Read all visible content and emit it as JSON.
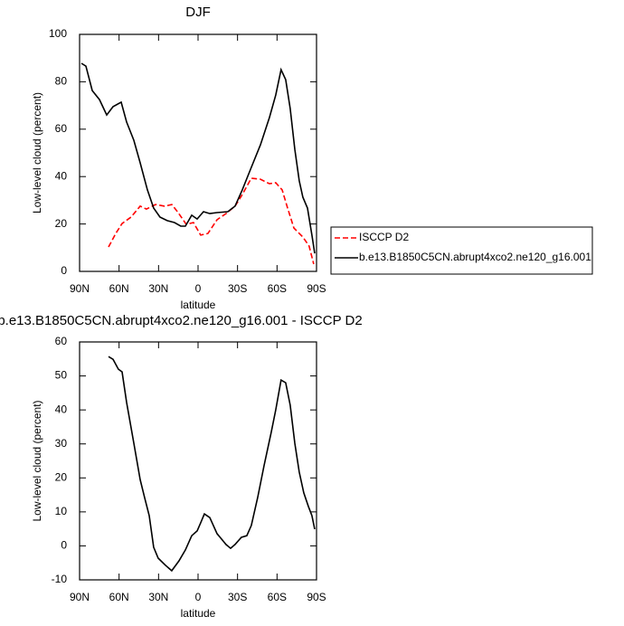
{
  "chart_data": [
    {
      "type": "line",
      "title": "DJF",
      "x_label": "latitude",
      "y_label": "Low-level cloud (percent)",
      "xlim": [
        90,
        -90
      ],
      "ylim": [
        0,
        100
      ],
      "xticks": [
        {
          "value": 90,
          "label": "90N"
        },
        {
          "value": 60,
          "label": "60N"
        },
        {
          "value": 30,
          "label": "30N"
        },
        0,
        {
          "value": -30,
          "label": "30S"
        },
        {
          "value": -60,
          "label": "60S"
        },
        {
          "value": -90,
          "label": "90S"
        }
      ],
      "yticks": [
        0,
        20,
        40,
        60,
        80,
        100
      ],
      "legend": "right",
      "series": [
        {
          "name": "ISCCP D2",
          "color": "#ff0000",
          "dash": true,
          "x": [
            68,
            62.5,
            57.7,
            50.9,
            44,
            39.2,
            32.3,
            25.4,
            19.9,
            15.1,
            8.9,
            3.5,
            -2,
            -7.5,
            -14.4,
            -21.2,
            -28.1,
            -33.6,
            -40.5,
            -47.4,
            -54.2,
            -59,
            -63.9,
            -68,
            -72.8,
            -79.6,
            -84.4,
            -87.9
          ],
          "values": [
            10.3,
            16,
            20.2,
            22.9,
            27.5,
            26.3,
            28.2,
            27.5,
            28.2,
            24.8,
            19.8,
            20.6,
            15.3,
            16,
            21.8,
            24.4,
            27.5,
            32.4,
            39.3,
            38.9,
            37,
            37.4,
            34.4,
            26.7,
            18.3,
            14.5,
            10.7,
            3.1
          ]
        },
        {
          "name": "b.e13.B1850C5CN.abrupt4xco2.ne120_g16.001",
          "color": "#000000",
          "dash": false,
          "x": [
            88.6,
            85.2,
            80.4,
            74.9,
            69.4,
            64.6,
            58.4,
            54.3,
            48.8,
            44,
            38.5,
            33.7,
            28.9,
            23.4,
            17.9,
            13.1,
            9.6,
            4.8,
            0.7,
            -4.1,
            -8.9,
            -14.4,
            -22.6,
            -28.1,
            -33.6,
            -40.5,
            -47.4,
            -54.2,
            -59,
            -63.1,
            -66.6,
            -70,
            -73.5,
            -76.9,
            -79.6,
            -83.1,
            -86.5,
            -88.6
          ],
          "values": [
            87.8,
            86.6,
            76.3,
            72.5,
            66,
            69.5,
            71.4,
            63,
            55.3,
            45.8,
            34.4,
            26.7,
            22.9,
            21.4,
            20.6,
            19.1,
            19.1,
            23.7,
            22.1,
            25.2,
            24.4,
            24.8,
            25.2,
            27.5,
            34.4,
            43.9,
            53.4,
            64.9,
            74.4,
            85.1,
            80.9,
            68.7,
            51.5,
            38.2,
            31.3,
            26.7,
            15.3,
            7.6
          ]
        }
      ]
    },
    {
      "type": "line",
      "title": "b.e13.B1850C5CN.abrupt4xco2.ne120_g16.001 - ISCCP D2",
      "x_label": "latitude",
      "y_label": "Low-level cloud (percent)",
      "xlim": [
        90,
        -90
      ],
      "ylim": [
        -10,
        60
      ],
      "xticks": [
        {
          "value": 90,
          "label": "90N"
        },
        {
          "value": 60,
          "label": "60N"
        },
        {
          "value": 30,
          "label": "30N"
        },
        0,
        {
          "value": -30,
          "label": "30S"
        },
        {
          "value": -60,
          "label": "60S"
        },
        {
          "value": -90,
          "label": "90S"
        }
      ],
      "yticks": [
        -10,
        0,
        10,
        20,
        30,
        40,
        50,
        60
      ],
      "color": "#000000",
      "x": [
        68,
        64.6,
        60.5,
        57.7,
        54.3,
        48.8,
        44,
        40.6,
        37.1,
        33.7,
        30.3,
        24.8,
        20,
        14.5,
        9.6,
        4.8,
        0.7,
        -2,
        -4.8,
        -8.9,
        -14.4,
        -18.5,
        -21.2,
        -24.7,
        -28.1,
        -32.9,
        -37,
        -40.5,
        -45.3,
        -50.1,
        -55.6,
        -59,
        -63.1,
        -66.6,
        -70,
        -73.5,
        -76.9,
        -80.3,
        -83.8,
        -86.5,
        -88.6
      ],
      "values": [
        55.7,
        54.9,
        52,
        51.2,
        42.2,
        30.2,
        19.5,
        14.2,
        8.9,
        -0.4,
        -3.6,
        -5.7,
        -7.3,
        -4.4,
        -1.2,
        3,
        4.4,
        6.8,
        9.4,
        8.3,
        3.6,
        1.7,
        0.4,
        -0.7,
        0.4,
        2.5,
        3,
        6,
        14.2,
        23.5,
        33.4,
        40,
        48.8,
        48,
        41.4,
        30.2,
        21.7,
        15.6,
        11.6,
        8.9,
        4.9
      ]
    }
  ]
}
